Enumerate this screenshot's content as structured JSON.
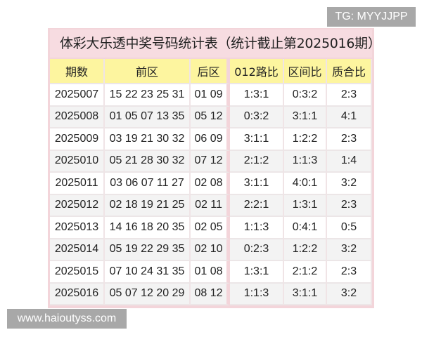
{
  "title": "体彩大乐透中奖号码统计表（统计截止第2025016期）",
  "headers": [
    "期数",
    "前区",
    "后区",
    "012路比",
    "区间比",
    "质合比"
  ],
  "rows": [
    [
      "2025007",
      "15 22 23 25 31",
      "01 09",
      "1:3:1",
      "0:3:2",
      "2:3"
    ],
    [
      "2025008",
      "01 05 07 13 35",
      "05 12",
      "0:3:2",
      "3:1:1",
      "4:1"
    ],
    [
      "2025009",
      "03 19 21 30 32",
      "06 09",
      "3:1:1",
      "1:2:2",
      "2:3"
    ],
    [
      "2025010",
      "05 21 28 30 32",
      "07 12",
      "2:1:2",
      "1:1:3",
      "1:4"
    ],
    [
      "2025011",
      "03 06 07 11 27",
      "02 08",
      "3:1:1",
      "4:0:1",
      "3:2"
    ],
    [
      "2025012",
      "02 18 19 21 25",
      "02 11",
      "2:2:1",
      "1:3:1",
      "2:3"
    ],
    [
      "2025013",
      "14 16 18 20 35",
      "02 05",
      "1:1:3",
      "0:4:1",
      "0:5"
    ],
    [
      "2025014",
      "05 19 22 29 35",
      "02 10",
      "0:2:3",
      "1:2:2",
      "3:2"
    ],
    [
      "2025015",
      "07 10 24 31 35",
      "01 08",
      "1:3:1",
      "2:1:2",
      "2:3"
    ],
    [
      "2025016",
      "05 07 12 20 29",
      "08 12",
      "1:1:3",
      "3:1:1",
      "3:2"
    ]
  ],
  "watermarks": {
    "tg": "TG: MYYJJPP",
    "url": "www.haioutyss.com"
  },
  "colors": {
    "frame": "#f3d5da",
    "header": "#fdf59f",
    "watermark": "#a8a8a8"
  }
}
